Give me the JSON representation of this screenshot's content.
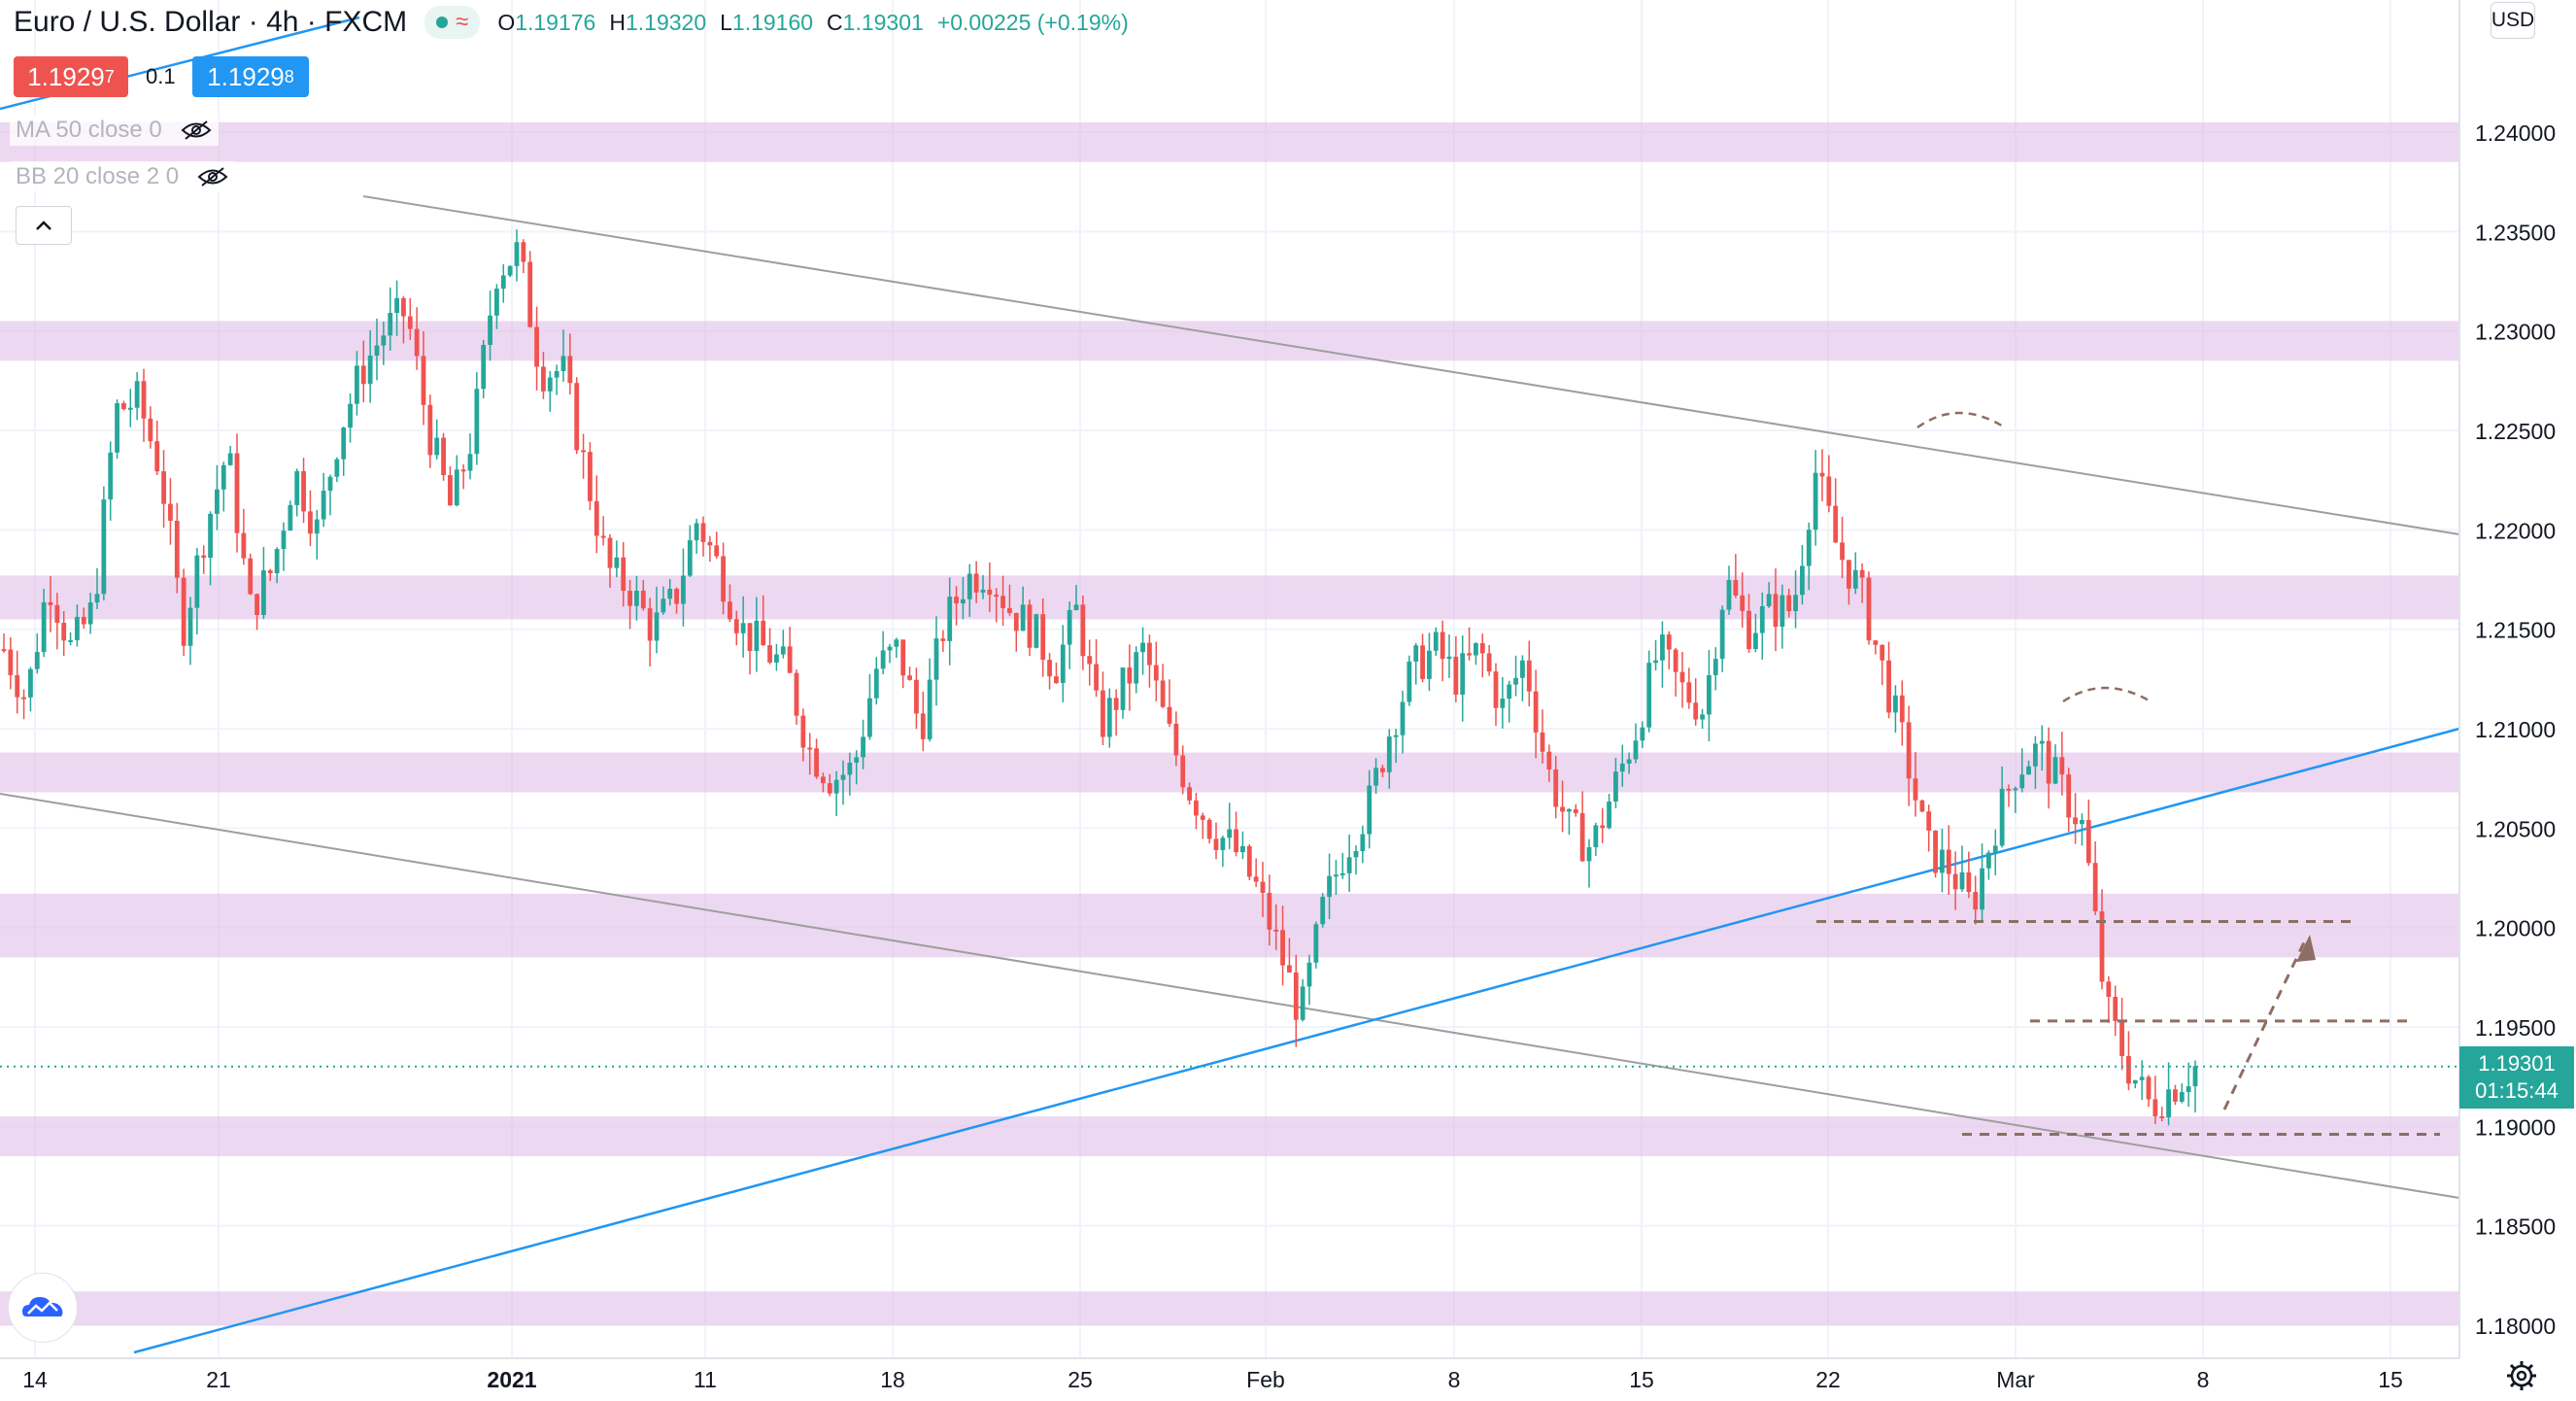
{
  "header": {
    "symbol": "Euro / U.S. Dollar",
    "interval": "4h",
    "exchange": "FXCM",
    "ohlc": {
      "o_label": "O",
      "o": "1.19176",
      "h_label": "H",
      "h": "1.19320",
      "l_label": "L",
      "l": "1.19160",
      "c_label": "C",
      "c": "1.19301",
      "change": "+0.00225 (+0.19%)"
    },
    "wave_icon": "≈"
  },
  "trade": {
    "sell_price": "1.1929",
    "sell_sup": "7",
    "spread": "0.1",
    "buy_price": "1.1929",
    "buy_sup": "8"
  },
  "indicators": [
    {
      "label": "MA 50 close 0",
      "icon": "eye-crossed"
    },
    {
      "label": "BB 20 close 2 0",
      "icon": "eye-crossed"
    }
  ],
  "price_axis": {
    "currency": "USD",
    "last_price": "1.19301",
    "countdown": "01:15:44"
  },
  "colors": {
    "up": "#26a69a",
    "down": "#ef5350",
    "zone": "#e1bee7",
    "channel": "#9e9e9e",
    "trend": "#2196f3",
    "annotation": "#8d6e63"
  },
  "chart_data": {
    "type": "candlestick",
    "symbol": "EURUSD",
    "timeframe": "4h",
    "ylim": [
      1.178,
      1.2415
    ],
    "y_ticks": [
      "1.24000",
      "1.23500",
      "1.23000",
      "1.22500",
      "1.22000",
      "1.21500",
      "1.21000",
      "1.20500",
      "1.20000",
      "1.19500",
      "1.19000",
      "1.18500",
      "1.18000"
    ],
    "x_ticks": [
      "14",
      "21",
      "2021",
      "11",
      "18",
      "25",
      "Feb",
      "8",
      "15",
      "22",
      "Mar",
      "8",
      "15"
    ],
    "last_close": 1.19301,
    "horizontal_zones": [
      [
        1.2385,
        1.2405
      ],
      [
        1.2285,
        1.2305
      ],
      [
        1.2155,
        1.2177
      ],
      [
        1.2068,
        1.2088
      ],
      [
        1.1985,
        1.2017
      ],
      [
        1.1885,
        1.1905
      ],
      [
        1.18,
        1.1817
      ]
    ],
    "dashed_levels": [
      1.2003,
      1.1953,
      1.1896
    ],
    "price_path": [
      1.214,
      1.2115,
      1.2175,
      1.214,
      1.216,
      1.226,
      1.2265,
      1.223,
      1.215,
      1.22,
      1.224,
      1.216,
      1.218,
      1.223,
      1.22,
      1.225,
      1.228,
      1.23,
      1.231,
      1.225,
      1.221,
      1.225,
      1.233,
      1.234,
      1.228,
      1.228,
      1.223,
      1.218,
      1.217,
      1.215,
      1.2165,
      1.2205,
      1.218,
      1.215,
      1.214,
      1.213,
      1.209,
      1.2075,
      1.208,
      1.213,
      1.214,
      1.21,
      1.215,
      1.2175,
      1.218,
      1.216,
      1.215,
      1.213,
      1.216,
      1.21,
      1.212,
      1.214,
      1.21,
      1.207,
      1.205,
      1.204,
      1.202,
      1.199,
      1.1955,
      1.201,
      1.204,
      1.206,
      1.21,
      1.213,
      1.214,
      1.2125,
      1.214,
      1.211,
      1.2135,
      1.208,
      1.205,
      1.204,
      1.207,
      1.21,
      1.214,
      1.212,
      1.211,
      1.2175,
      1.215,
      1.216,
      1.216,
      1.223,
      1.219,
      1.217,
      1.213,
      1.209,
      1.204,
      1.203,
      1.201,
      1.205,
      1.208,
      1.209,
      1.207,
      1.205,
      1.196,
      1.193,
      1.191,
      1.192,
      1.193
    ]
  }
}
